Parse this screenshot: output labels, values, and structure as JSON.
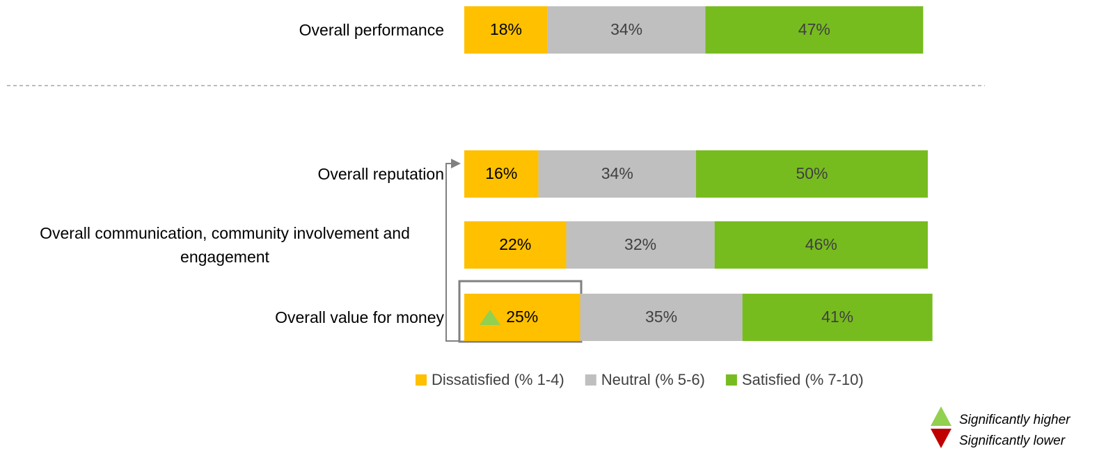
{
  "chart_data": {
    "type": "stacked_bar_horizontal",
    "categories": [
      "Overall performance",
      "Overall reputation",
      "Overall communication, community involvement and engagement",
      "Overall value for money"
    ],
    "series": [
      {
        "name": "Dissatisfied (% 1-4)",
        "color": "#FFC000",
        "label_color": "#000000",
        "values": [
          18,
          16,
          22,
          25
        ],
        "value_labels": [
          "18%",
          "16%",
          "22%",
          "25%"
        ]
      },
      {
        "name": "Neutral (% 5-6)",
        "color": "#BFBFBF",
        "label_color": "#404040",
        "values": [
          34,
          34,
          32,
          35
        ],
        "value_labels": [
          "34%",
          "34%",
          "32%",
          "35%"
        ]
      },
      {
        "name": "Satisfied (% 7-10)",
        "color": "#77BC1F",
        "label_color": "#404040",
        "values": [
          47,
          50,
          46,
          41
        ],
        "value_labels": [
          "47%",
          "50%",
          "46%",
          "41%"
        ]
      }
    ],
    "xlim": [
      0,
      100
    ],
    "significance_legend": [
      {
        "label": "Significantly higher",
        "color": "#92D050"
      },
      {
        "label": "Significantly lower",
        "color": "#C00000"
      }
    ],
    "significant": [
      {
        "series": 0,
        "category": 3,
        "legend": 0
      }
    ]
  }
}
